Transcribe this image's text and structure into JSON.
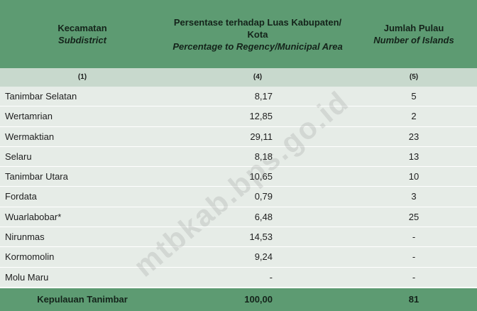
{
  "header": {
    "col1_line1": "Kecamatan",
    "col1_line2": "Subdistrict",
    "col2_line1": "Persentase terhadap Luas Kabupaten/",
    "col2_line2": "Kota",
    "col2_line3": "Percentage to Regency/Municipal Area",
    "col3_line1": "Jumlah Pulau",
    "col3_line2": "Number of Islands"
  },
  "numbers": {
    "c1": "(1)",
    "c2": "(4)",
    "c3": "(5)"
  },
  "rows": [
    {
      "name": "Tanimbar Selatan",
      "pct": "8,17",
      "islands": "5"
    },
    {
      "name": "Wertamrian",
      "pct": "12,85",
      "islands": "2"
    },
    {
      "name": "Wermaktian",
      "pct": "29,11",
      "islands": "23"
    },
    {
      "name": "Selaru",
      "pct": "8,18",
      "islands": "13"
    },
    {
      "name": "Tanimbar Utara",
      "pct": "10,65",
      "islands": "10"
    },
    {
      "name": "Fordata",
      "pct": "0,79",
      "islands": "3"
    },
    {
      "name": "Wuarlabobar*",
      "pct": "6,48",
      "islands": "25"
    },
    {
      "name": "Nirunmas",
      "pct": "14,53",
      "islands": "-"
    },
    {
      "name": "Kormomolin",
      "pct": "9,24",
      "islands": "-"
    },
    {
      "name": "Molu Maru",
      "pct": "-",
      "islands": "-"
    }
  ],
  "total": {
    "name": "Kepulauan Tanimbar",
    "pct": "100,00",
    "islands": "81"
  },
  "watermark": "mtbkab.bps.go.id",
  "colors": {
    "header_bg": "#5d9b72",
    "number_row_bg": "#c8d9cd",
    "row_bg": "#e6ece7"
  }
}
